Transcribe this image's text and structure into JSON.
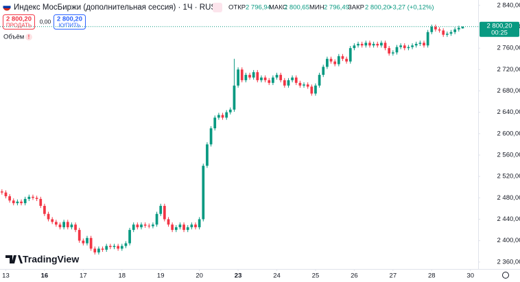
{
  "chart_data": {
    "type": "candlestick",
    "title": "Индекс МосБиржи (дополнительная сессия) · 1Ч · RUS",
    "header": {
      "open_label": "ОТКР",
      "open": "2 796,94",
      "high_label": "МАКС",
      "high": "2 800,65",
      "low_label": "МИН",
      "low": "2 796,49",
      "close_label": "ЗАКР",
      "close": "2 800,20",
      "change": "+3,27 (+0,12%)"
    },
    "trade": {
      "sell_price": "2 800,20",
      "sell": "ПРОДАТЬ",
      "spread": "0,00",
      "buy_price": "2 800,20",
      "buy": "КУПИТЬ"
    },
    "volume_label": "Объём",
    "logo": "TradingView",
    "up_color": "#089981",
    "down_color": "#f23645",
    "last_price": {
      "value": 2800.2,
      "label": "2 800,20"
    },
    "countdown": "00:25",
    "open": [
      2492,
      2490,
      2483,
      2475,
      2470,
      2473,
      2470,
      2478,
      2482,
      2480,
      2478,
      2465,
      2450,
      2440,
      2435,
      2430,
      2425,
      2435,
      2425,
      2430,
      2420,
      2400,
      2395,
      2405,
      2385,
      2378,
      2385,
      2383,
      2390,
      2388,
      2390,
      2385,
      2390,
      2395,
      2420,
      2430,
      2425,
      2430,
      2428,
      2427,
      2430,
      2450,
      2465,
      2440,
      2430,
      2420,
      2425,
      2430,
      2420,
      2425,
      2430,
      2425,
      2440,
      2540,
      2580,
      2610,
      2630,
      2635,
      2630,
      2640,
      2645,
      2690,
      2720,
      2700,
      2710,
      2705,
      2715,
      2700,
      2705,
      2700,
      2695,
      2705,
      2710,
      2700,
      2690,
      2700,
      2705,
      2695,
      2690,
      2692,
      2688,
      2675,
      2690,
      2710,
      2725,
      2740,
      2735,
      2730,
      2745,
      2740,
      2735,
      2760,
      2765,
      2768,
      2765,
      2770,
      2765,
      2768,
      2765,
      2770,
      2760,
      2750,
      2752,
      2762,
      2765,
      2760,
      2762,
      2765,
      2768,
      2770,
      2765,
      2790,
      2800,
      2795,
      2793,
      2785,
      2787,
      2790,
      2795,
      2796.94
    ],
    "high": [
      2496,
      2494,
      2487,
      2479,
      2477,
      2477,
      2482,
      2486,
      2486,
      2484,
      2482,
      2469,
      2454,
      2444,
      2439,
      2434,
      2439,
      2439,
      2434,
      2434,
      2424,
      2404,
      2409,
      2409,
      2389,
      2389,
      2389,
      2394,
      2394,
      2394,
      2394,
      2394,
      2399,
      2424,
      2434,
      2434,
      2434,
      2434,
      2432,
      2434,
      2454,
      2469,
      2469,
      2444,
      2434,
      2429,
      2434,
      2434,
      2429,
      2434,
      2434,
      2444,
      2544,
      2584,
      2614,
      2634,
      2639,
      2639,
      2644,
      2649,
      2740,
      2724,
      2724,
      2714,
      2714,
      2719,
      2719,
      2709,
      2709,
      2704,
      2709,
      2714,
      2714,
      2704,
      2704,
      2709,
      2709,
      2699,
      2696,
      2696,
      2692,
      2694,
      2714,
      2729,
      2744,
      2744,
      2739,
      2749,
      2749,
      2744,
      2764,
      2769,
      2772,
      2772,
      2774,
      2774,
      2772,
      2772,
      2774,
      2774,
      2764,
      2756,
      2766,
      2769,
      2769,
      2766,
      2769,
      2772,
      2774,
      2774,
      2794,
      2804,
      2804,
      2799,
      2797,
      2791,
      2794,
      2799,
      2802,
      2800.65
    ],
    "low": [
      2486,
      2479,
      2471,
      2466,
      2466,
      2466,
      2466,
      2474,
      2476,
      2474,
      2461,
      2446,
      2436,
      2431,
      2426,
      2421,
      2421,
      2421,
      2421,
      2416,
      2396,
      2391,
      2391,
      2381,
      2374,
      2374,
      2379,
      2379,
      2384,
      2384,
      2381,
      2381,
      2386,
      2391,
      2416,
      2421,
      2421,
      2424,
      2423,
      2423,
      2426,
      2446,
      2436,
      2426,
      2416,
      2416,
      2421,
      2416,
      2416,
      2421,
      2421,
      2421,
      2436,
      2536,
      2576,
      2606,
      2626,
      2626,
      2626,
      2636,
      2641,
      2686,
      2696,
      2696,
      2701,
      2701,
      2696,
      2696,
      2696,
      2691,
      2691,
      2701,
      2696,
      2686,
      2686,
      2696,
      2691,
      2686,
      2686,
      2684,
      2671,
      2671,
      2686,
      2706,
      2721,
      2731,
      2726,
      2726,
      2736,
      2731,
      2731,
      2756,
      2761,
      2761,
      2761,
      2761,
      2761,
      2761,
      2761,
      2756,
      2746,
      2746,
      2748,
      2758,
      2756,
      2756,
      2758,
      2761,
      2764,
      2761,
      2761,
      2786,
      2791,
      2789,
      2781,
      2781,
      2783,
      2786,
      2791,
      2796.49
    ],
    "close": [
      2490,
      2483,
      2475,
      2470,
      2473,
      2470,
      2478,
      2482,
      2480,
      2478,
      2465,
      2450,
      2440,
      2435,
      2430,
      2425,
      2435,
      2425,
      2430,
      2420,
      2400,
      2395,
      2405,
      2385,
      2378,
      2385,
      2383,
      2390,
      2388,
      2390,
      2385,
      2390,
      2395,
      2420,
      2430,
      2425,
      2430,
      2428,
      2427,
      2430,
      2450,
      2465,
      2440,
      2430,
      2420,
      2425,
      2430,
      2420,
      2425,
      2430,
      2425,
      2440,
      2540,
      2580,
      2610,
      2630,
      2635,
      2630,
      2640,
      2645,
      2690,
      2720,
      2700,
      2710,
      2705,
      2715,
      2700,
      2705,
      2700,
      2695,
      2705,
      2710,
      2700,
      2690,
      2700,
      2705,
      2695,
      2690,
      2692,
      2688,
      2675,
      2690,
      2710,
      2725,
      2740,
      2735,
      2730,
      2745,
      2740,
      2735,
      2760,
      2765,
      2768,
      2765,
      2770,
      2765,
      2768,
      2765,
      2770,
      2760,
      2750,
      2752,
      2762,
      2765,
      2760,
      2762,
      2765,
      2768,
      2770,
      2765,
      2790,
      2800,
      2795,
      2793,
      2785,
      2787,
      2790,
      2795,
      2798,
      2800.2
    ],
    "xlim": [
      -0.5,
      123
    ],
    "xticks": [
      {
        "value": 1,
        "label": "13"
      },
      {
        "value": 11,
        "label": "16"
      },
      {
        "value": 21,
        "label": "17"
      },
      {
        "value": 31,
        "label": "18"
      },
      {
        "value": 41,
        "label": "19"
      },
      {
        "value": 51,
        "label": "20"
      },
      {
        "value": 61,
        "label": "23"
      },
      {
        "value": 71,
        "label": "24"
      },
      {
        "value": 81,
        "label": "25"
      },
      {
        "value": 91,
        "label": "26"
      },
      {
        "value": 101,
        "label": "27"
      },
      {
        "value": 111,
        "label": "28"
      },
      {
        "value": 121,
        "label": "30"
      }
    ],
    "ylim": [
      2347,
      2850
    ],
    "yticks": [
      {
        "value": 2360,
        "label": "2 360,00"
      },
      {
        "value": 2400,
        "label": "2 400,00"
      },
      {
        "value": 2440,
        "label": "2 440,00"
      },
      {
        "value": 2480,
        "label": "2 480,00"
      },
      {
        "value": 2520,
        "label": "2 520,00"
      },
      {
        "value": 2560,
        "label": "2 560,00"
      },
      {
        "value": 2600,
        "label": "2 600,00"
      },
      {
        "value": 2640,
        "label": "2 640,00"
      },
      {
        "value": 2680,
        "label": "2 680,00"
      },
      {
        "value": 2720,
        "label": "2 720,00"
      },
      {
        "value": 2760,
        "label": "2 760,00"
      },
      {
        "value": 2800,
        "label": "2 800,00"
      },
      {
        "value": 2840,
        "label": "2 840,00"
      }
    ],
    "grid": false
  }
}
